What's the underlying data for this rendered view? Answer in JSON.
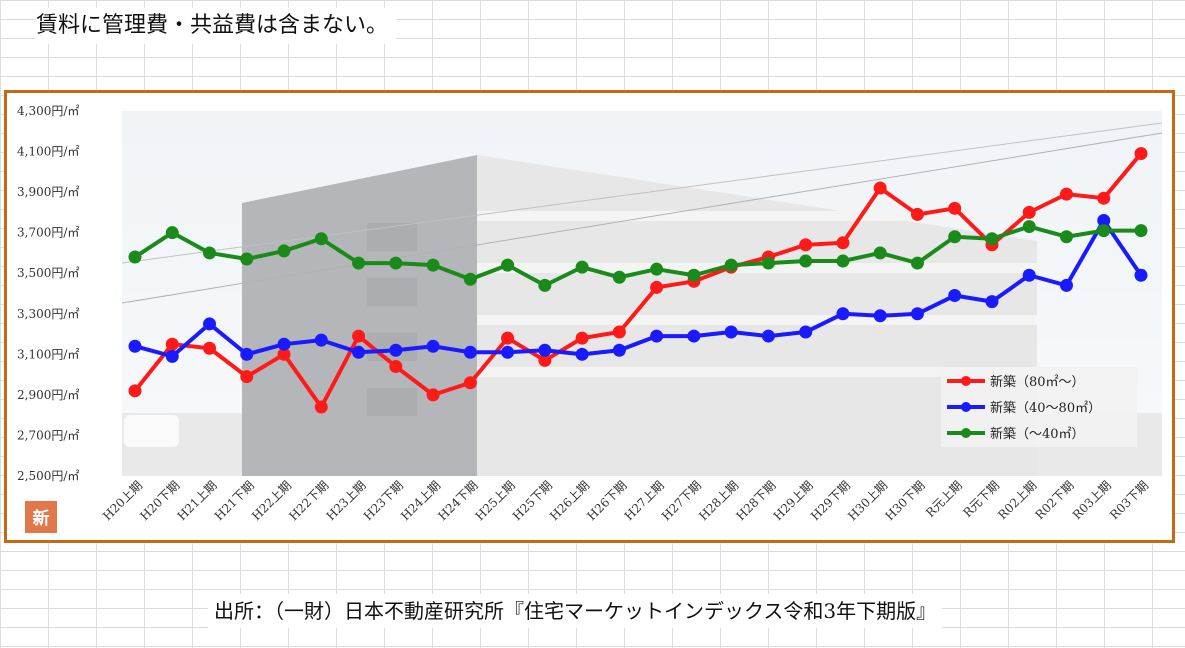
{
  "header": {
    "note": "賃料に管理費・共益費は含まない。"
  },
  "footer": {
    "source": "出所：（一財）日本不動産研究所『住宅マーケットインデックス令和3年下期版』"
  },
  "badge": {
    "label": "新",
    "color": "#e0784a"
  },
  "chart_data": {
    "type": "line",
    "title": "",
    "xlabel": "",
    "ylabel": "",
    "ylim": [
      2500,
      4300
    ],
    "y_ticks": [
      {
        "value": 4300,
        "label": "4,300円/㎡"
      },
      {
        "value": 4100,
        "label": "4,100円/㎡"
      },
      {
        "value": 3900,
        "label": "3,900円/㎡"
      },
      {
        "value": 3700,
        "label": "3,700円/㎡"
      },
      {
        "value": 3500,
        "label": "3,500円/㎡"
      },
      {
        "value": 3300,
        "label": "3,300円/㎡"
      },
      {
        "value": 3100,
        "label": "3,100円/㎡"
      },
      {
        "value": 2900,
        "label": "2,900円/㎡"
      },
      {
        "value": 2700,
        "label": "2,700円/㎡"
      },
      {
        "value": 2500,
        "label": "2,500円/㎡"
      }
    ],
    "categories": [
      "H20上期",
      "H20下期",
      "H21上期",
      "H21下期",
      "H22上期",
      "H22下期",
      "H23上期",
      "H23下期",
      "H24上期",
      "H24下期",
      "H25上期",
      "H25下期",
      "H26上期",
      "H26下期",
      "H27上期",
      "H27下期",
      "H28上期",
      "H28下期",
      "H29上期",
      "H29下期",
      "H30上期",
      "H30下期",
      "R元上期",
      "R元下期",
      "R02上期",
      "R02下期",
      "R03上期",
      "R03下期"
    ],
    "legend_position": "bottom-right",
    "grid": false,
    "series": [
      {
        "name": "新築（80㎡～）",
        "color": "#ff1a1a",
        "values": [
          2920,
          3150,
          3130,
          2990,
          3100,
          2840,
          3190,
          3040,
          2900,
          2960,
          3180,
          3070,
          3180,
          3210,
          3430,
          3460,
          3530,
          3580,
          3640,
          3650,
          3920,
          3790,
          3820,
          3640,
          3800,
          3890,
          3870,
          4090
        ]
      },
      {
        "name": "新築（40～80㎡）",
        "color": "#1a1aff",
        "values": [
          3140,
          3090,
          3250,
          3100,
          3150,
          3170,
          3110,
          3120,
          3140,
          3110,
          3110,
          3120,
          3100,
          3120,
          3190,
          3190,
          3210,
          3190,
          3210,
          3300,
          3290,
          3300,
          3390,
          3360,
          3490,
          3440,
          3760,
          3490
        ]
      },
      {
        "name": "新築（～40㎡）",
        "color": "#1a8a1a",
        "values": [
          3580,
          3700,
          3600,
          3570,
          3610,
          3670,
          3550,
          3550,
          3540,
          3470,
          3540,
          3440,
          3530,
          3480,
          3520,
          3490,
          3540,
          3550,
          3560,
          3560,
          3600,
          3550,
          3680,
          3670,
          3730,
          3680,
          3710,
          3710
        ]
      }
    ]
  }
}
